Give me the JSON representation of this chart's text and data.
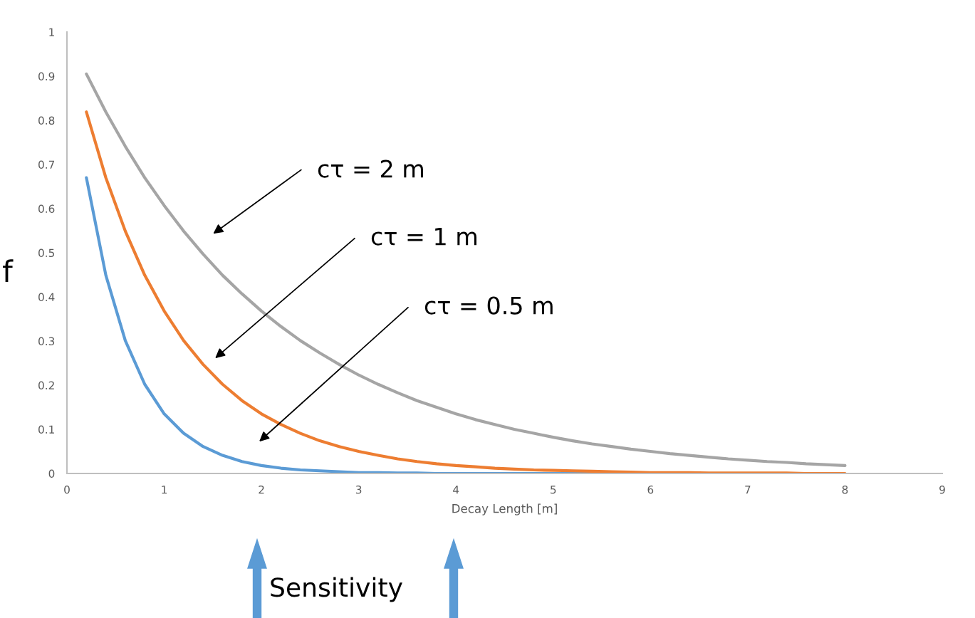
{
  "chart_data": {
    "type": "line",
    "xlabel": "Decay Length [m]",
    "ylabel": "f",
    "x": [
      0.2,
      0.4,
      0.6,
      0.8,
      1.0,
      1.2,
      1.4,
      1.6,
      1.8,
      2.0,
      2.2,
      2.4,
      2.6,
      2.8,
      3.0,
      3.2,
      3.4,
      3.6,
      3.8,
      4.0,
      4.2,
      4.4,
      4.6,
      4.8,
      5.0,
      5.2,
      5.4,
      5.6,
      5.8,
      6.0,
      6.2,
      6.4,
      6.6,
      6.8,
      7.0,
      7.2,
      7.4,
      7.6,
      7.8,
      8.0
    ],
    "series": [
      {
        "color": "#5b9bd5",
        "values": [
          0.67,
          0.449,
          0.301,
          0.202,
          0.135,
          0.091,
          0.061,
          0.041,
          0.027,
          0.018,
          0.012,
          0.008,
          0.006,
          0.004,
          0.002,
          0.002,
          0.001,
          0.001,
          0.0,
          0.0,
          0,
          0,
          0,
          0,
          0,
          0,
          0,
          null,
          null,
          null,
          null,
          null,
          null,
          null,
          null,
          null,
          null,
          null,
          null,
          null
        ]
      },
      {
        "color": "#ed7d31",
        "values": [
          0.819,
          0.67,
          0.549,
          0.449,
          0.368,
          0.301,
          0.247,
          0.202,
          0.165,
          0.135,
          0.111,
          0.091,
          0.074,
          0.061,
          0.05,
          0.041,
          0.033,
          0.027,
          0.022,
          0.018,
          0.015,
          0.012,
          0.01,
          0.008,
          0.007,
          0.006,
          0.005,
          0.004,
          0.003,
          0.002,
          0.002,
          0.002,
          0.001,
          0.001,
          0.001,
          0.001,
          0.001,
          0,
          0,
          0
        ]
      },
      {
        "color": "#a5a5a5",
        "values": [
          0.905,
          0.819,
          0.741,
          0.67,
          0.607,
          0.549,
          0.497,
          0.449,
          0.407,
          0.368,
          0.333,
          0.301,
          0.273,
          0.247,
          0.223,
          0.202,
          0.183,
          0.165,
          0.15,
          0.135,
          0.122,
          0.111,
          0.1,
          0.091,
          0.082,
          0.074,
          0.067,
          0.061,
          0.055,
          0.05,
          0.045,
          0.041,
          0.037,
          0.033,
          0.03,
          0.027,
          0.025,
          0.022,
          0.02,
          0.018
        ]
      }
    ],
    "xlim": [
      0,
      9
    ],
    "xticks": [
      0,
      1,
      2,
      3,
      4,
      5,
      6,
      7,
      8,
      9
    ],
    "ylim": [
      0,
      1
    ],
    "yticks": [
      0,
      0.1,
      0.2,
      0.3,
      0.4,
      0.5,
      0.6,
      0.7,
      0.8,
      0.9,
      1
    ],
    "grid": false,
    "legend": false,
    "marker": "none",
    "line_style": "solid",
    "annotations": [
      "cτ = 2 m",
      "cτ = 1 m",
      "cτ = 0.5 m",
      "Sensitivity"
    ]
  }
}
